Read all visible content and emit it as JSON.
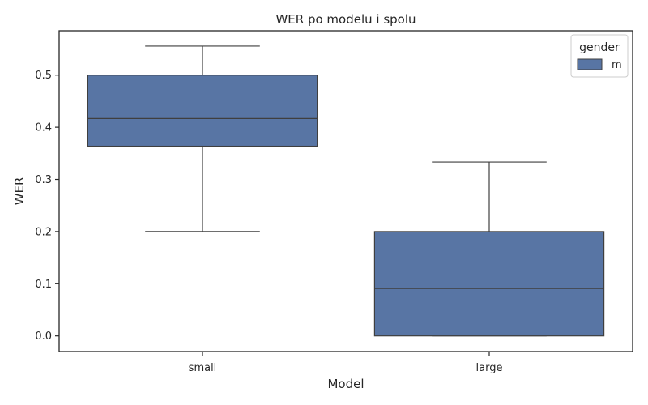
{
  "chart_data": {
    "type": "boxplot",
    "title": "WER po modelu i spolu",
    "xlabel": "Model",
    "ylabel": "WER",
    "categories": [
      "small",
      "large"
    ],
    "ylim": [
      -0.03,
      0.585
    ],
    "yticks": [
      0.0,
      0.1,
      0.2,
      0.3,
      0.4,
      0.5
    ],
    "ytick_labels": [
      "0.0",
      "0.1",
      "0.2",
      "0.3",
      "0.4",
      "0.5"
    ],
    "grid": false,
    "legend": {
      "title": "gender",
      "placement": "top-right",
      "entries": [
        "m"
      ]
    },
    "series": [
      {
        "name": "m",
        "color": "#5875a4",
        "boxes": [
          {
            "category": "small",
            "whisker_low": 0.2,
            "q1": 0.3636,
            "median": 0.4167,
            "q3": 0.5,
            "whisker_high": 0.5556
          },
          {
            "category": "large",
            "whisker_low": 0.0,
            "q1": 0.0,
            "median": 0.0909,
            "q3": 0.2,
            "whisker_high": 0.3333
          }
        ]
      }
    ]
  }
}
